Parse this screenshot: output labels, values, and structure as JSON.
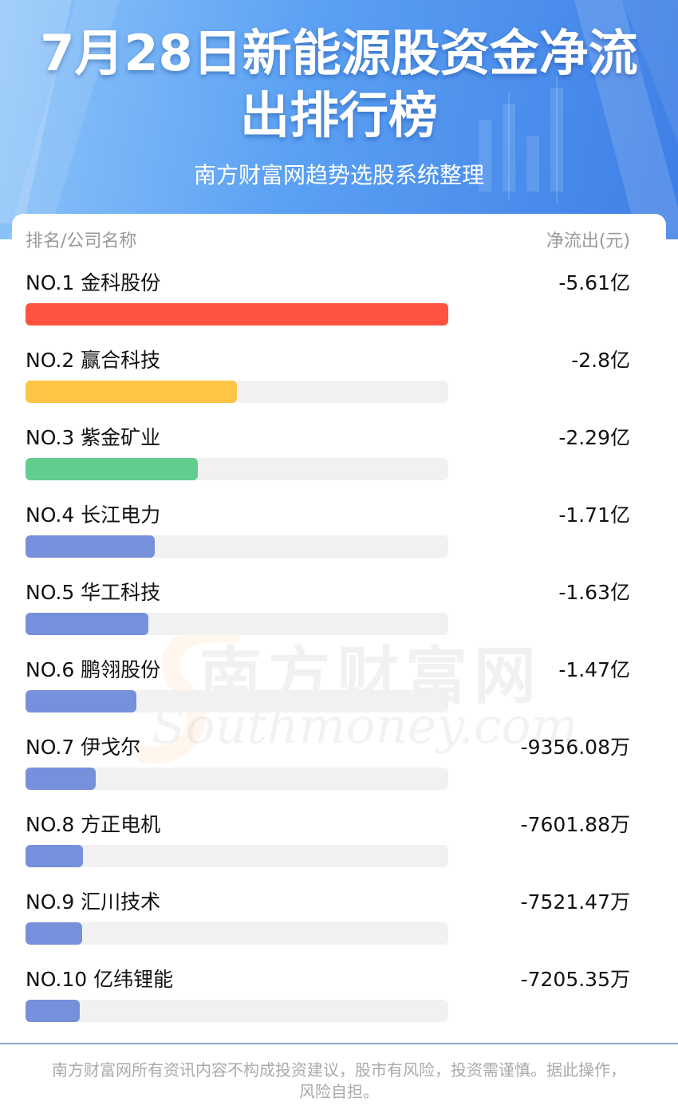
{
  "header": {
    "title_line1": "7月28日新能源股资金净流",
    "title_line2": "出排行榜",
    "subtitle": "南方财富网趋势选股系统整理"
  },
  "columns": {
    "left": "排名/公司名称",
    "right": "净流出(元)"
  },
  "watermark": {
    "cn": "南方财富网",
    "en": "Southmoney.com"
  },
  "footer": {
    "disclaimer": "南方财富网所有资讯内容不构成投资建议，股市有风险，投资需谨慎。据此操作，风险自担。"
  },
  "colors": {
    "rank1": "#ff533f",
    "rank2": "#ffc443",
    "rank3": "#62cd8f",
    "rest": "#7690dc"
  },
  "chart_data": {
    "type": "bar",
    "orientation": "horizontal",
    "unit_note": "亿 = 1e8 元",
    "categories": [
      "NO.1 金科股份",
      "NO.2 赢合科技",
      "NO.3 紫金矿业",
      "NO.4 长江电力",
      "NO.5 华工科技",
      "NO.6 鹏翎股份",
      "NO.7 伊戈尔",
      "NO.8 方正电机",
      "NO.9 汇川技术",
      "NO.10 亿纬锂能"
    ],
    "labels": [
      "-5.61亿",
      "-2.8亿",
      "-2.29亿",
      "-1.71亿",
      "-1.63亿",
      "-1.47亿",
      "-9356.08万",
      "-7601.88万",
      "-7521.47万",
      "-7205.35万"
    ],
    "values": [
      5.61,
      2.8,
      2.29,
      1.71,
      1.63,
      1.47,
      0.935608,
      0.760188,
      0.752147,
      0.720535
    ],
    "max": 5.61
  }
}
